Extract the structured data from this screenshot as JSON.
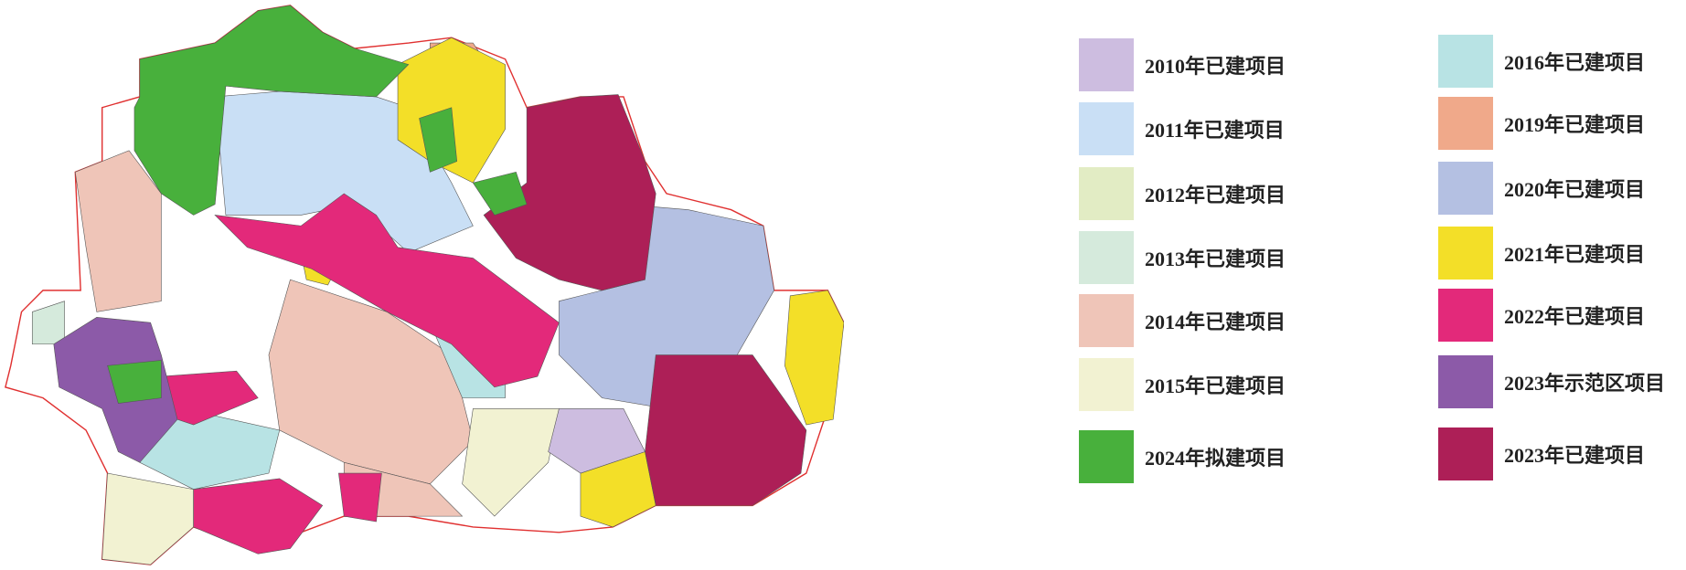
{
  "legend": {
    "columns": [
      [
        {
          "label": "2010年已建项目",
          "color": "#cdbde0"
        },
        {
          "label": "2011年已建项目",
          "color": "#c9dff5"
        },
        {
          "label": "2012年已建项目",
          "color": "#e2ecc4"
        },
        {
          "label": "2013年已建项目",
          "color": "#d5eadc"
        },
        {
          "label": "2014年已建项目",
          "color": "#efc5b8"
        },
        {
          "label": "2015年已建项目",
          "color": "#f2f2d2"
        },
        {
          "label": "2024年拟建项目",
          "color": "#48b03c"
        }
      ],
      [
        {
          "label": "2016年已建项目",
          "color": "#b8e3e4"
        },
        {
          "label": "2019年已建项目",
          "color": "#f0a98a"
        },
        {
          "label": "2020年已建项目",
          "color": "#b4c0e2"
        },
        {
          "label": "2021年已建项目",
          "color": "#f3df28"
        },
        {
          "label": "2022年已建项目",
          "color": "#e3297a"
        },
        {
          "label": "2023年示范区项目",
          "color": "#8c5aa8"
        },
        {
          "label": "2023年已建项目",
          "color": "#ad1f57"
        }
      ]
    ]
  }
}
